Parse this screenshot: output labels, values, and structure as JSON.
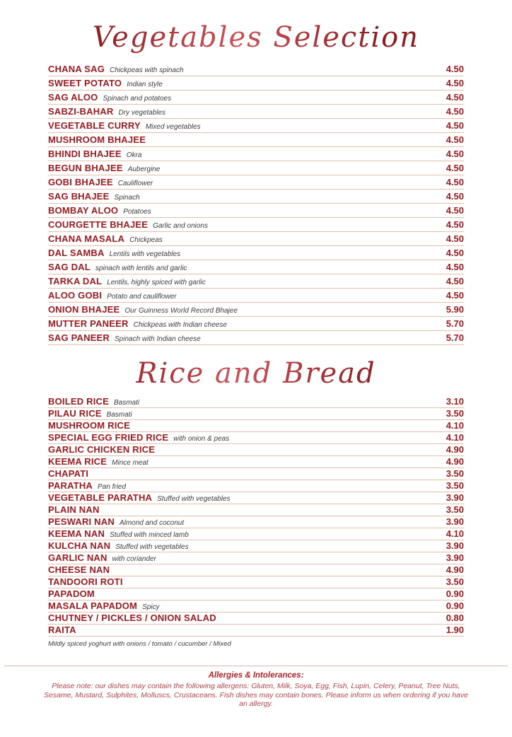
{
  "colors": {
    "item_red": "#9c1b20",
    "title_red": "#a2262b",
    "separator": "#e2bfa8",
    "description_gray": "#3c3c3c",
    "allergies_title_red": "#b2252a",
    "allergies_text_red": "#b8474b",
    "background": "#ffffff"
  },
  "sections": [
    {
      "title": "Vegetables Selection",
      "items": [
        {
          "name": "CHANA SAG",
          "desc": "Chickpeas with spinach",
          "price": "4.50"
        },
        {
          "name": "SWEET POTATO",
          "desc": "Indian style",
          "price": "4.50"
        },
        {
          "name": "SAG ALOO",
          "desc": "Spinach and potatoes",
          "price": "4.50"
        },
        {
          "name": "SABZI-BAHAR",
          "desc": "Dry vegetables",
          "price": "4.50"
        },
        {
          "name": "VEGETABLE CURRY",
          "desc": "Mixed vegetables",
          "price": "4.50"
        },
        {
          "name": "MUSHROOM BHAJEE",
          "desc": "",
          "price": "4.50"
        },
        {
          "name": "BHINDI BHAJEE",
          "desc": "Okra",
          "price": "4.50"
        },
        {
          "name": "BEGUN BHAJEE",
          "desc": "Aubergine",
          "price": "4.50"
        },
        {
          "name": "GOBI BHAJEE",
          "desc": "Cauliflower",
          "price": "4.50"
        },
        {
          "name": "SAG BHAJEE",
          "desc": "Spinach",
          "price": "4.50"
        },
        {
          "name": "BOMBAY ALOO",
          "desc": "Potatoes",
          "price": "4.50"
        },
        {
          "name": "COURGETTE BHAJEE",
          "desc": "Garlic and onions",
          "price": "4.50"
        },
        {
          "name": "CHANA MASALA",
          "desc": "Chickpeas",
          "price": "4.50"
        },
        {
          "name": "DAL SAMBA",
          "desc": "Lentils with vegetables",
          "price": "4.50"
        },
        {
          "name": "SAG DAL",
          "desc": "spinach with lentils and garlic",
          "price": "4.50"
        },
        {
          "name": "TARKA DAL",
          "desc": "Lentils, highly spiced with garlic",
          "price": "4.50"
        },
        {
          "name": "ALOO GOBI",
          "desc": "Potato and cauliflower",
          "price": "4.50"
        },
        {
          "name": "ONION BHAJEE",
          "desc": "Our Guinness World Record Bhajee",
          "price": "5.90"
        },
        {
          "name": "MUTTER PANEER",
          "desc": "Chickpeas with Indian cheese",
          "price": "5.70"
        },
        {
          "name": "SAG PANEER",
          "desc": "Spinach with Indian cheese",
          "price": "5.70"
        }
      ],
      "footnote": ""
    },
    {
      "title": "Rice and Bread",
      "items": [
        {
          "name": "BOILED RICE",
          "desc": "Basmati",
          "price": "3.10"
        },
        {
          "name": "PILAU RICE",
          "desc": "Basmati",
          "price": "3.50"
        },
        {
          "name": "MUSHROOM RICE",
          "desc": "",
          "price": "4.10"
        },
        {
          "name": "SPECIAL EGG FRIED RICE",
          "desc": "with onion & peas",
          "price": "4.10"
        },
        {
          "name": "GARLIC CHICKEN RICE",
          "desc": "",
          "price": "4.90"
        },
        {
          "name": "KEEMA RICE",
          "desc": "Mince meat",
          "price": "4.90"
        },
        {
          "name": "CHAPATI",
          "desc": "",
          "price": "3.50"
        },
        {
          "name": "PARATHA",
          "desc": "Pan fried",
          "price": "3.50"
        },
        {
          "name": "VEGETABLE PARATHA",
          "desc": "Stuffed with vegetables",
          "price": "3.90"
        },
        {
          "name": "PLAIN NAN",
          "desc": "",
          "price": "3.50"
        },
        {
          "name": "PESWARI NAN",
          "desc": "Almond and coconut",
          "price": "3.90"
        },
        {
          "name": "KEEMA NAN",
          "desc": "Stuffed with minced lamb",
          "price": "4.10"
        },
        {
          "name": "KULCHA NAN",
          "desc": "Stuffed with vegetables",
          "price": "3.90"
        },
        {
          "name": "GARLIC NAN",
          "desc": "with coriander",
          "price": "3.90"
        },
        {
          "name": "CHEESE NAN",
          "desc": "",
          "price": "4.90"
        },
        {
          "name": "TANDOORI ROTI",
          "desc": "",
          "price": "3.50"
        },
        {
          "name": "PAPADOM",
          "desc": "",
          "price": "0.90"
        },
        {
          "name": "MASALA PAPADOM",
          "desc": "Spicy",
          "price": "0.90"
        },
        {
          "name": "CHUTNEY / PICKLES / ONION SALAD",
          "desc": "",
          "price": "0.80"
        },
        {
          "name": "RAITA",
          "desc": "",
          "price": "1.90"
        }
      ],
      "footnote": "Mildly spiced yoghurt with onions / tomato / cucumber / Mixed"
    }
  ],
  "allergies": {
    "title": "Allergies & Intolerances:",
    "text": "Please note: our dishes may contain the following allergens: Gluten, Milk, Soya, Egg, Fish, Lupin, Celery, Peanut, Tree Nuts, Sesame, Mustard, Sulphites, Molluscs, Crustaceans. Fish dishes may contain bones. Please inform us when ordering if you have an allergy."
  }
}
